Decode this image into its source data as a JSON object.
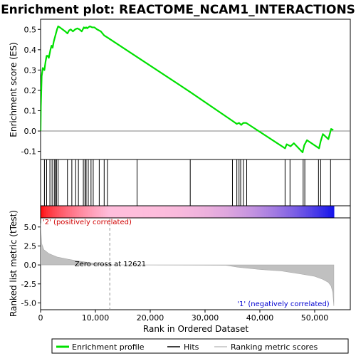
{
  "chart_data": {
    "type": "line",
    "title": "Enrichment plot: REACTOME_NCAM1_INTERACTIONS",
    "top_panel": {
      "ylabel": "Enrichment score (ES)",
      "ylim": [
        -0.14,
        0.55
      ],
      "yticks": [
        -0.1,
        0.0,
        0.1,
        0.2,
        0.3,
        0.4,
        0.5
      ],
      "ytick_labels": [
        "-0.1",
        "0.0",
        "0.1",
        "0.2",
        "0.3",
        "0.4",
        "0.5"
      ],
      "series": [
        {
          "name": "Enrichment profile",
          "color": "#00e000",
          "x": [
            0,
            50,
            200,
            400,
            700,
            900,
            1100,
            1300,
            1500,
            1800,
            2000,
            2200,
            2400,
            2600,
            2800,
            3000,
            3200,
            3500,
            4000,
            4500,
            4900,
            5200,
            5500,
            5900,
            6300,
            6700,
            7100,
            7500,
            7900,
            8100,
            8300,
            8500,
            8700,
            9000,
            9400,
            9800,
            10300,
            11000,
            11600,
            12200,
            27400,
            35000,
            35800,
            36200,
            36600,
            37000,
            37500,
            44600,
            44900,
            45600,
            46200,
            47800,
            48100,
            48600,
            50800,
            51100,
            51500,
            52500,
            53000,
            53400
          ],
          "y": [
            0.0,
            0.12,
            0.27,
            0.31,
            0.3,
            0.34,
            0.37,
            0.37,
            0.36,
            0.4,
            0.42,
            0.41,
            0.44,
            0.46,
            0.48,
            0.5,
            0.515,
            0.51,
            0.5,
            0.49,
            0.48,
            0.495,
            0.5,
            0.49,
            0.5,
            0.505,
            0.5,
            0.49,
            0.51,
            0.505,
            0.51,
            0.505,
            0.51,
            0.515,
            0.51,
            0.51,
            0.5,
            0.49,
            0.47,
            0.46,
            0.19,
            0.05,
            0.035,
            0.04,
            0.03,
            0.04,
            0.04,
            -0.085,
            -0.065,
            -0.075,
            -0.06,
            -0.105,
            -0.07,
            -0.045,
            -0.085,
            -0.05,
            -0.015,
            -0.04,
            0.01,
            0.005
          ]
        }
      ]
    },
    "hits_panel": {
      "hit_positions": [
        700,
        1100,
        1700,
        2100,
        2500,
        2700,
        2900,
        3200,
        4900,
        5700,
        6400,
        6900,
        7800,
        8100,
        8300,
        8700,
        9200,
        9600,
        10700,
        11600,
        12200,
        17600,
        27300,
        35000,
        35800,
        36200,
        36500,
        37000,
        37600,
        44600,
        45500,
        47900,
        48200,
        50700,
        51100,
        52900
      ]
    },
    "bottom_panel": {
      "ylabel": "Ranked list metric (tTest)",
      "xlabel": "Rank in Ordered Dataset",
      "ylim": [
        -5.9,
        6.2
      ],
      "yticks": [
        -5.0,
        -2.5,
        0.0,
        2.5,
        5.0
      ],
      "ytick_labels": [
        "-5.0",
        "-2.5",
        "0.0",
        "2.5",
        "5.0"
      ],
      "xlim": [
        0,
        56500
      ],
      "xticks": [
        0,
        10000,
        20000,
        30000,
        40000,
        50000
      ],
      "xtick_labels": [
        "0",
        "10,000",
        "20,000",
        "30,000",
        "40,000",
        "50,000"
      ],
      "metric_x": [
        0,
        200,
        600,
        1500,
        3000,
        5000,
        7000,
        9000,
        10500,
        11500,
        12621,
        20000,
        33800,
        36000,
        40000,
        44000,
        47500,
        50000,
        51500,
        52500,
        53000,
        53300,
        53500
      ],
      "metric_y": [
        5.5,
        2.8,
        2.0,
        1.5,
        1.05,
        0.75,
        0.5,
        0.3,
        0.15,
        0.05,
        0.0,
        -0.01,
        -0.05,
        -0.3,
        -0.6,
        -0.8,
        -1.2,
        -1.5,
        -1.9,
        -2.3,
        -2.8,
        -3.6,
        -5.4
      ],
      "zero_cross": 12621,
      "zero_cross_label": "Zero cross at 12621",
      "pos_label": "'2' (positively correlated)",
      "neg_label": "'1' (negatively correlated)",
      "pos_label_color": "#d00000",
      "neg_label_color": "#0000d0"
    },
    "n_genes": 53500,
    "legend": {
      "placement": "bottom",
      "entries": [
        {
          "label": "Enrichment profile",
          "color": "#00e000"
        },
        {
          "label": "Hits",
          "color": "#000000"
        },
        {
          "label": "Ranking metric scores",
          "color": "#c0c0c0"
        }
      ]
    },
    "colors": {
      "profile": "#00e000",
      "metric_fill": "#c0c0c0",
      "heat_pos": "#ff0000",
      "heat_mid": "#ffc0e0",
      "heat_neg": "#0000ff"
    }
  }
}
